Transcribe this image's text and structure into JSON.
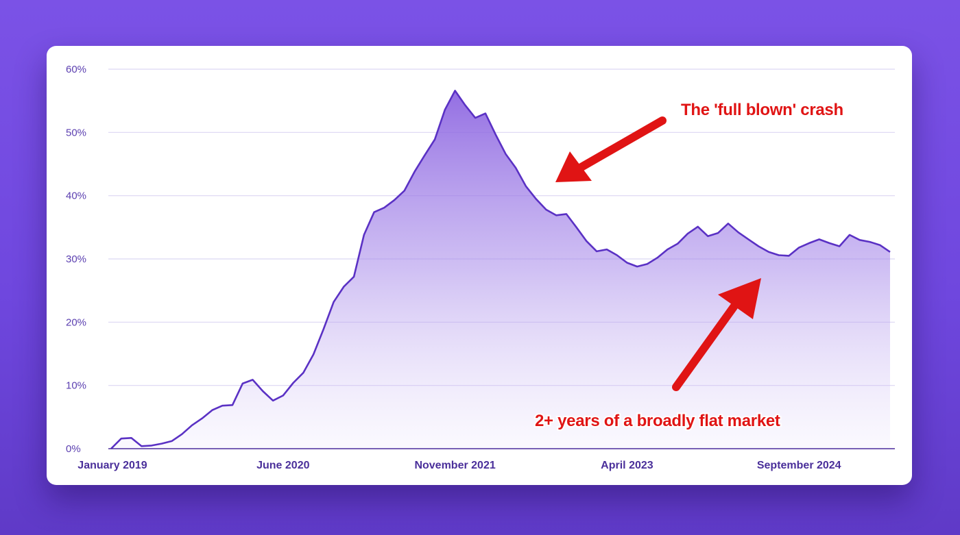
{
  "colors": {
    "background": "#7b52e6",
    "line": "#5a31c4",
    "fill": "#8a62e0",
    "axis_text": "#5b3fb0",
    "annotation": "#e01414"
  },
  "chart_data": {
    "type": "area",
    "title": "",
    "xlabel": "",
    "ylabel": "",
    "ylim": [
      0,
      60
    ],
    "grid": true,
    "y_ticks": [
      "0%",
      "10%",
      "20%",
      "30%",
      "40%",
      "50%",
      "60%"
    ],
    "x_ticks": [
      "January 2019",
      "June 2020",
      "November 2021",
      "April 2023",
      "September 2024"
    ],
    "x_start": "January 2019",
    "x_end": "June 2025",
    "series": [
      {
        "values": [
          0,
          1.6,
          1.7,
          0.4,
          0.5,
          0.8,
          1.2,
          2.3,
          3.7,
          4.8,
          6.1,
          6.8,
          6.9,
          10.3,
          10.9,
          9.1,
          7.6,
          8.4,
          10.4,
          12.0,
          14.9,
          18.9,
          23.2,
          25.6,
          27.2,
          33.8,
          37.4,
          38.1,
          39.3,
          40.8,
          43.8,
          46.4,
          48.9,
          53.6,
          56.6,
          54.3,
          52.3,
          53.0,
          49.7,
          46.6,
          44.4,
          41.5,
          39.5,
          37.8,
          36.9,
          37.1,
          35.0,
          32.8,
          31.2,
          31.5,
          30.6,
          29.4,
          28.8,
          29.2,
          30.2,
          31.5,
          32.4,
          34.0,
          35.1,
          33.6,
          34.1,
          35.6,
          34.2,
          33.1,
          32.0,
          31.1,
          30.6,
          30.5,
          31.8,
          32.5,
          33.1,
          32.5,
          32.0,
          33.8,
          33.0,
          32.7,
          32.2,
          31.1
        ]
      }
    ],
    "annotations": [
      {
        "text": "The 'full blown' crash",
        "points_to": "decline after November 2021 peak"
      },
      {
        "text": "2+ years of a broadly flat market",
        "points_to": "flat region 2023-2025"
      }
    ]
  }
}
